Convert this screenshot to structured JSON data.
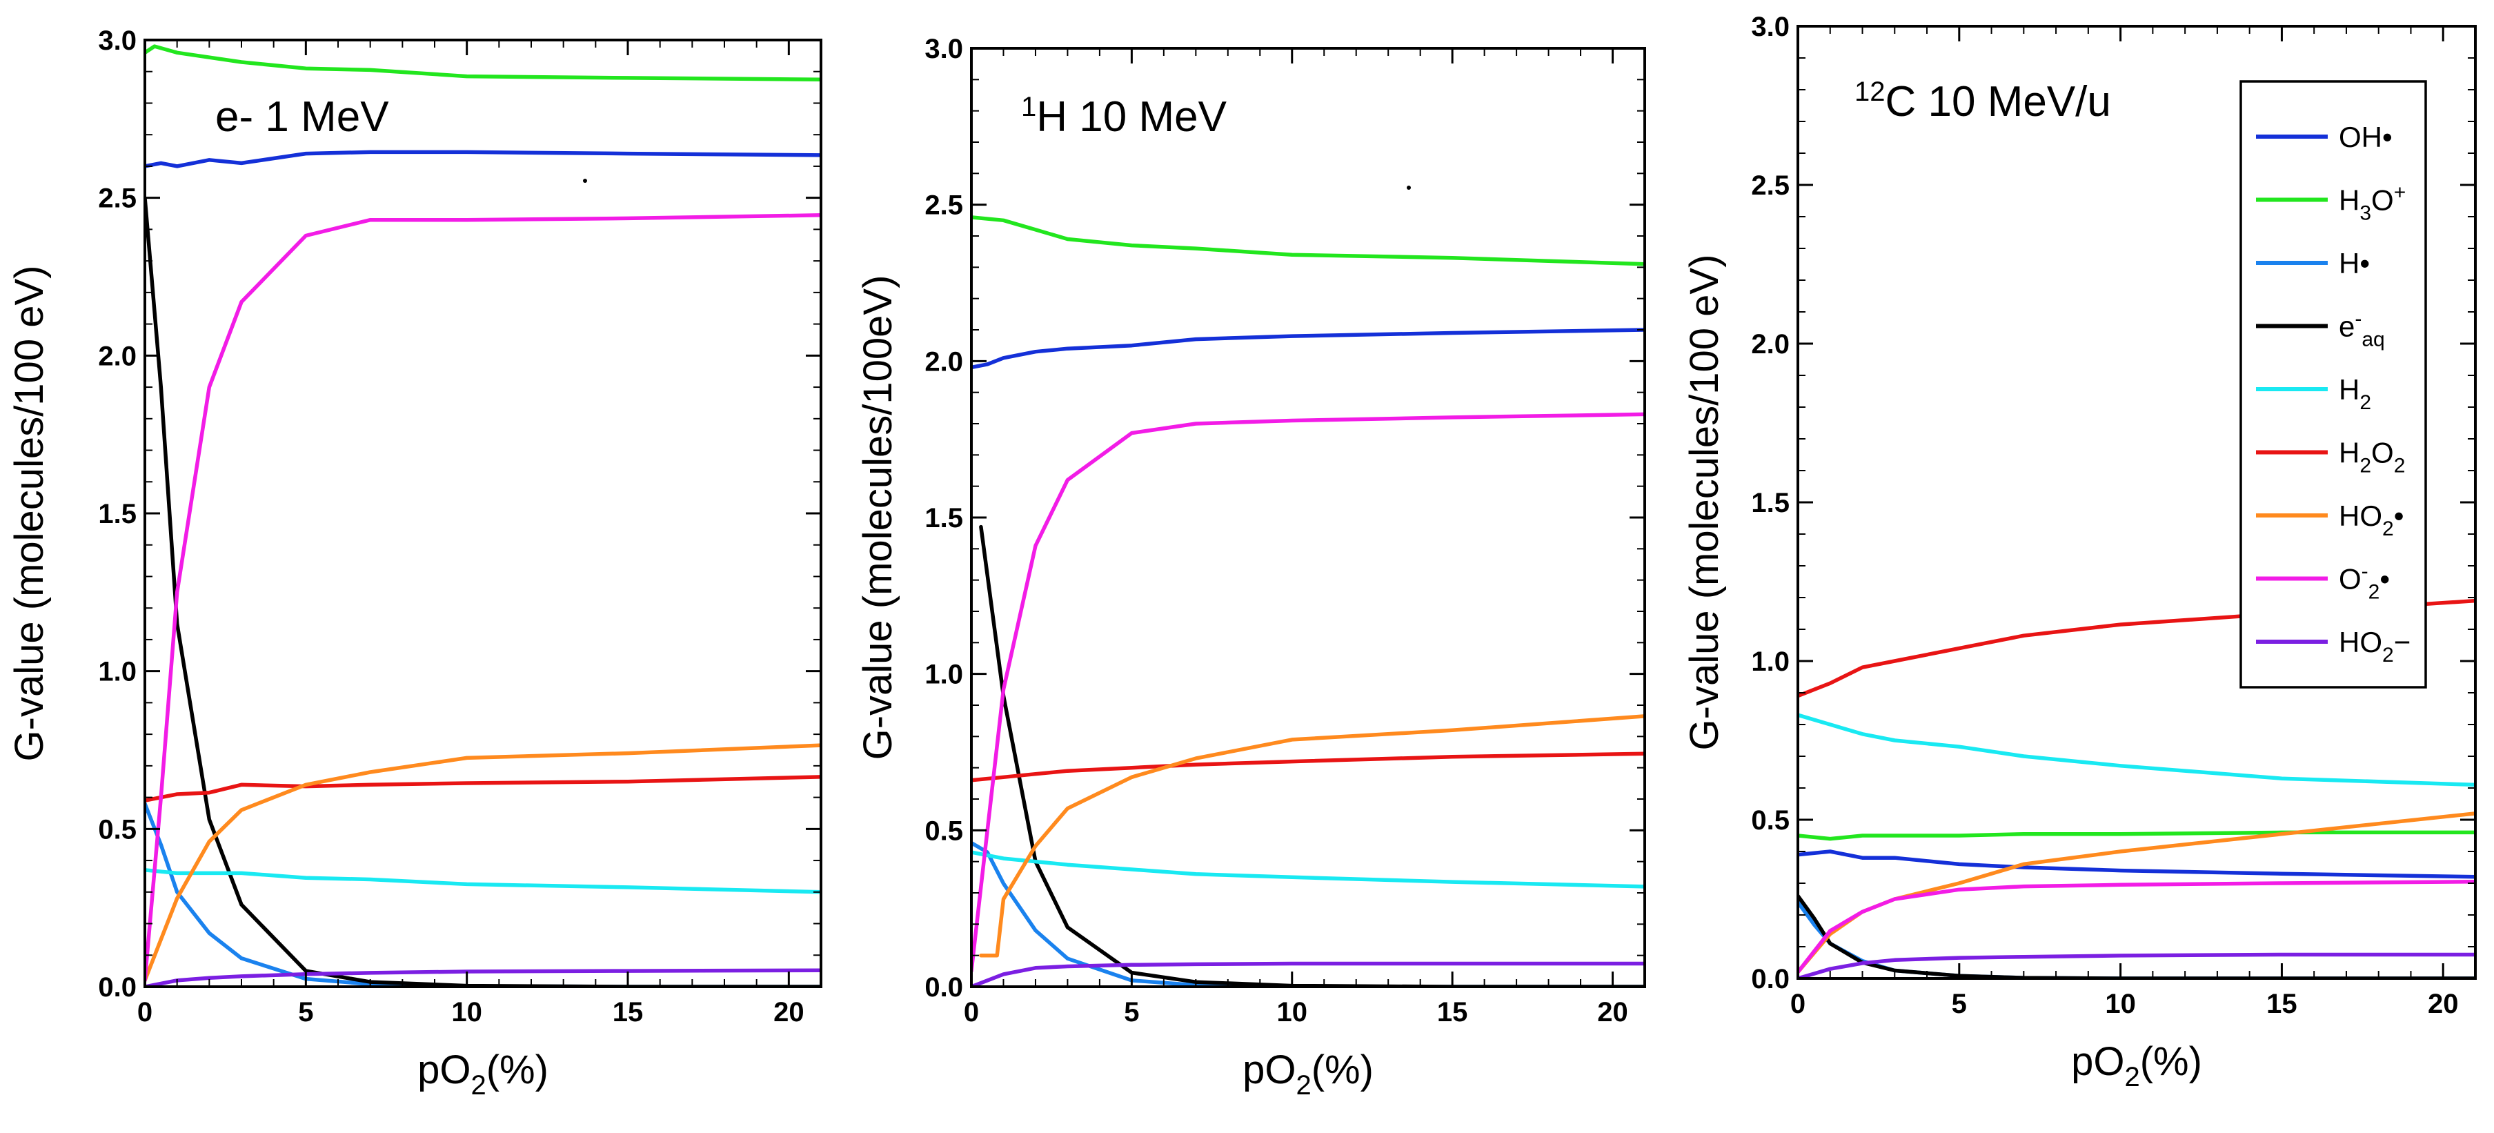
{
  "chart_data": [
    {
      "type": "line",
      "panel": "left",
      "annotation": "e- 1 MeV",
      "xlabel": "pO2(%)",
      "ylabel": "G-value  (molecules/100  eV)",
      "xlim": [
        0,
        21
      ],
      "ylim": [
        0,
        3.0
      ],
      "xticks": [
        "0",
        "5",
        "10",
        "15",
        "20"
      ],
      "yticks": [
        "0.0",
        "0.5",
        "1.0",
        "1.5",
        "2.0",
        "2.5",
        "3.0"
      ],
      "series": [
        {
          "name": "OH•",
          "color": "#1430d8",
          "x": [
            0,
            0.5,
            1,
            2,
            3,
            5,
            7,
            10,
            15,
            21
          ],
          "y": [
            2.6,
            2.61,
            2.6,
            2.62,
            2.61,
            2.64,
            2.645,
            2.645,
            2.64,
            2.635
          ]
        },
        {
          "name": "H3O+",
          "color": "#22e61e",
          "x": [
            0,
            0.3,
            1,
            3,
            5,
            7,
            10,
            15,
            21
          ],
          "y": [
            2.96,
            2.98,
            2.96,
            2.93,
            2.91,
            2.905,
            2.885,
            2.88,
            2.875
          ]
        },
        {
          "name": "H•",
          "color": "#1a82ee",
          "x": [
            0,
            0.5,
            1,
            2,
            3,
            5,
            7,
            10,
            15,
            21
          ],
          "y": [
            0.58,
            0.45,
            0.3,
            0.17,
            0.09,
            0.025,
            0.008,
            0.002,
            0,
            0
          ]
        },
        {
          "name": "e-aq",
          "color": "#000000",
          "x": [
            0,
            0.5,
            1,
            2,
            3,
            5,
            7,
            10,
            15,
            21
          ],
          "y": [
            2.5,
            1.9,
            1.15,
            0.53,
            0.26,
            0.05,
            0.015,
            0.003,
            0,
            0
          ]
        },
        {
          "name": "H2",
          "color": "#19e9f2",
          "x": [
            0,
            1,
            3,
            5,
            7,
            10,
            15,
            21
          ],
          "y": [
            0.37,
            0.36,
            0.36,
            0.345,
            0.34,
            0.325,
            0.315,
            0.3
          ]
        },
        {
          "name": "H2O2",
          "color": "#e81414",
          "x": [
            0,
            1,
            2,
            3,
            5,
            7,
            10,
            15,
            21
          ],
          "y": [
            0.59,
            0.61,
            0.615,
            0.64,
            0.635,
            0.64,
            0.645,
            0.65,
            0.665
          ]
        },
        {
          "name": "HO2•",
          "color": "#ff8a1e",
          "x": [
            0,
            1,
            2,
            3,
            5,
            7,
            10,
            15,
            21
          ],
          "y": [
            0.02,
            0.28,
            0.46,
            0.56,
            0.64,
            0.68,
            0.725,
            0.74,
            0.765
          ]
        },
        {
          "name": "O2-•",
          "color": "#f21ce6",
          "x": [
            0,
            0.5,
            1,
            2,
            3,
            5,
            7,
            10,
            15,
            21
          ],
          "y": [
            0.02,
            0.6,
            1.25,
            1.9,
            2.17,
            2.38,
            2.43,
            2.43,
            2.435,
            2.445
          ]
        },
        {
          "name": "HO2-",
          "color": "#7b1fe2",
          "x": [
            0,
            1,
            2,
            3,
            5,
            7,
            10,
            15,
            21
          ],
          "y": [
            0.0,
            0.02,
            0.028,
            0.033,
            0.04,
            0.044,
            0.048,
            0.05,
            0.052
          ]
        }
      ]
    },
    {
      "type": "line",
      "panel": "middle",
      "annotation": "H 10 MeV",
      "annotation_sup": "1",
      "xlabel": "pO2(%)",
      "ylabel": "G-value  (molecules/100eV)",
      "xlim": [
        0,
        21
      ],
      "ylim": [
        0,
        3.0
      ],
      "xticks": [
        "0",
        "5",
        "10",
        "15",
        "20"
      ],
      "yticks": [
        "0.0",
        "0.5",
        "1.0",
        "1.5",
        "2.0",
        "2.5",
        "3.0"
      ],
      "series": [
        {
          "name": "OH•",
          "color": "#1430d8",
          "x": [
            0,
            0.5,
            1,
            2,
            3,
            5,
            7,
            10,
            15,
            21
          ],
          "y": [
            1.98,
            1.99,
            2.01,
            2.03,
            2.04,
            2.05,
            2.07,
            2.08,
            2.09,
            2.1
          ]
        },
        {
          "name": "H3O+",
          "color": "#22e61e",
          "x": [
            0,
            1,
            2,
            3,
            5,
            7,
            10,
            15,
            21
          ],
          "y": [
            2.46,
            2.45,
            2.42,
            2.39,
            2.37,
            2.36,
            2.34,
            2.33,
            2.31
          ]
        },
        {
          "name": "H•",
          "color": "#1a82ee",
          "x": [
            0,
            0.5,
            1,
            2,
            3,
            5,
            7,
            10,
            15,
            21
          ],
          "y": [
            0.46,
            0.43,
            0.33,
            0.18,
            0.09,
            0.02,
            0.005,
            0,
            0,
            0
          ]
        },
        {
          "name": "e-aq",
          "color": "#000000",
          "x": [
            0.3,
            1,
            2,
            3,
            5,
            7,
            10,
            15,
            21
          ],
          "y": [
            1.47,
            0.93,
            0.4,
            0.19,
            0.045,
            0.015,
            0.003,
            0,
            0
          ]
        },
        {
          "name": "H2",
          "color": "#19e9f2",
          "x": [
            0,
            1,
            3,
            5,
            7,
            10,
            15,
            21
          ],
          "y": [
            0.43,
            0.41,
            0.39,
            0.375,
            0.36,
            0.35,
            0.335,
            0.32
          ]
        },
        {
          "name": "H2O2",
          "color": "#e81414",
          "x": [
            0,
            1,
            2,
            3,
            5,
            7,
            10,
            15,
            21
          ],
          "y": [
            0.66,
            0.67,
            0.68,
            0.69,
            0.7,
            0.71,
            0.72,
            0.735,
            0.745
          ]
        },
        {
          "name": "HO2•",
          "color": "#ff8a1e",
          "x": [
            0.3,
            0.8,
            1,
            2,
            3,
            5,
            7,
            10,
            15,
            21
          ],
          "y": [
            0.1,
            0.1,
            0.28,
            0.45,
            0.57,
            0.67,
            0.73,
            0.79,
            0.82,
            0.865
          ]
        },
        {
          "name": "O2-•",
          "color": "#f21ce6",
          "x": [
            0,
            0.5,
            1,
            2,
            3,
            5,
            7,
            10,
            15,
            21
          ],
          "y": [
            0.05,
            0.5,
            0.95,
            1.41,
            1.62,
            1.77,
            1.8,
            1.81,
            1.82,
            1.83
          ]
        },
        {
          "name": "HO2-",
          "color": "#7b1fe2",
          "x": [
            0,
            0.5,
            1,
            2,
            3,
            5,
            7,
            10,
            15,
            21
          ],
          "y": [
            0,
            0.02,
            0.04,
            0.06,
            0.065,
            0.07,
            0.072,
            0.074,
            0.074,
            0.074
          ]
        }
      ]
    },
    {
      "type": "line",
      "panel": "right",
      "annotation": "C 10 MeV/u",
      "annotation_sup": "12",
      "xlabel": "pO2(%)",
      "ylabel": "G-value  (molecules/100  eV)",
      "xlim": [
        0,
        21
      ],
      "ylim": [
        0,
        3.0
      ],
      "xticks": [
        "0",
        "5",
        "10",
        "15",
        "20"
      ],
      "yticks": [
        "0.0",
        "0.5",
        "1.0",
        "1.5",
        "2.0",
        "2.5",
        "3.0"
      ],
      "legend_position": "top-right",
      "series": [
        {
          "name": "OH•",
          "color": "#1430d8",
          "x": [
            0,
            1,
            2,
            3,
            5,
            7,
            10,
            15,
            21
          ],
          "y": [
            0.39,
            0.4,
            0.38,
            0.38,
            0.36,
            0.35,
            0.34,
            0.33,
            0.32
          ]
        },
        {
          "name": "H3O+",
          "color": "#22e61e",
          "x": [
            0,
            1,
            2,
            3,
            5,
            7,
            10,
            15,
            21
          ],
          "y": [
            0.45,
            0.44,
            0.45,
            0.45,
            0.45,
            0.455,
            0.455,
            0.46,
            0.46
          ]
        },
        {
          "name": "H•",
          "color": "#1a82ee",
          "x": [
            0,
            0.5,
            1,
            2,
            3,
            5,
            7,
            10,
            15,
            21
          ],
          "y": [
            0.24,
            0.17,
            0.11,
            0.055,
            0.025,
            0.008,
            0.002,
            0,
            0,
            0
          ]
        },
        {
          "name": "e-aq",
          "color": "#000000",
          "x": [
            0,
            0.5,
            1,
            2,
            3,
            5,
            7,
            10,
            15,
            21
          ],
          "y": [
            0.26,
            0.19,
            0.11,
            0.05,
            0.025,
            0.008,
            0.002,
            0,
            0,
            0
          ]
        },
        {
          "name": "H2",
          "color": "#19e9f2",
          "x": [
            0,
            1,
            2,
            3,
            5,
            7,
            10,
            15,
            21
          ],
          "y": [
            0.83,
            0.8,
            0.77,
            0.75,
            0.73,
            0.7,
            0.67,
            0.63,
            0.61
          ]
        },
        {
          "name": "H2O2",
          "color": "#e81414",
          "x": [
            0,
            1,
            2,
            3,
            5,
            7,
            10,
            15,
            21
          ],
          "y": [
            0.89,
            0.93,
            0.98,
            1.0,
            1.04,
            1.08,
            1.115,
            1.15,
            1.19
          ]
        },
        {
          "name": "HO2•",
          "color": "#ff8a1e",
          "x": [
            0,
            1,
            2,
            3,
            5,
            7,
            10,
            15,
            21
          ],
          "y": [
            0.02,
            0.14,
            0.21,
            0.25,
            0.3,
            0.36,
            0.4,
            0.455,
            0.52
          ]
        },
        {
          "name": "O2-•",
          "color": "#f21ce6",
          "x": [
            0,
            1,
            2,
            3,
            5,
            7,
            10,
            15,
            21
          ],
          "y": [
            0.02,
            0.15,
            0.21,
            0.25,
            0.28,
            0.29,
            0.295,
            0.3,
            0.305
          ]
        },
        {
          "name": "HO2-",
          "color": "#7b1fe2",
          "x": [
            0,
            0.5,
            1,
            2,
            3,
            5,
            7,
            10,
            15,
            21
          ],
          "y": [
            0,
            0.015,
            0.03,
            0.048,
            0.058,
            0.065,
            0.068,
            0.072,
            0.075,
            0.075
          ]
        }
      ]
    }
  ],
  "legend": [
    {
      "series": "OH•",
      "base": "OH",
      "sub": "",
      "sup": "",
      "suffix": "•",
      "color": "#1430d8"
    },
    {
      "series": "H3O+",
      "base": "H",
      "sub": "3",
      "sup": "",
      "suffix": "O",
      "sup2": "+",
      "color": "#22e61e"
    },
    {
      "series": "H•",
      "base": "H",
      "sub": "",
      "sup": "",
      "suffix": "•",
      "color": "#1a82ee"
    },
    {
      "series": "e-aq",
      "base": "e",
      "sup": "-",
      "sub": "aq",
      "suffix": "",
      "color": "#000000"
    },
    {
      "series": "H2",
      "base": "H",
      "sub": "2",
      "sup": "",
      "suffix": "",
      "color": "#19e9f2"
    },
    {
      "series": "H2O2",
      "base": "H",
      "sub": "2",
      "sup": "",
      "suffix": "O",
      "sub2": "2",
      "color": "#e81414"
    },
    {
      "series": "HO2•",
      "base": "HO",
      "sub": "2",
      "sup": "",
      "suffix": "•",
      "color": "#ff8a1e"
    },
    {
      "series": "O2-•",
      "base": "O",
      "sub": "2",
      "sup": "-",
      "suffix": "•",
      "color": "#f21ce6"
    },
    {
      "series": "HO2-",
      "base": "HO",
      "sub": "2",
      "sup": "",
      "suffix": "−",
      "color": "#7b1fe2"
    }
  ],
  "xlabel_parts": {
    "base": "pO",
    "sub": "2",
    "suffix": "(%)"
  }
}
